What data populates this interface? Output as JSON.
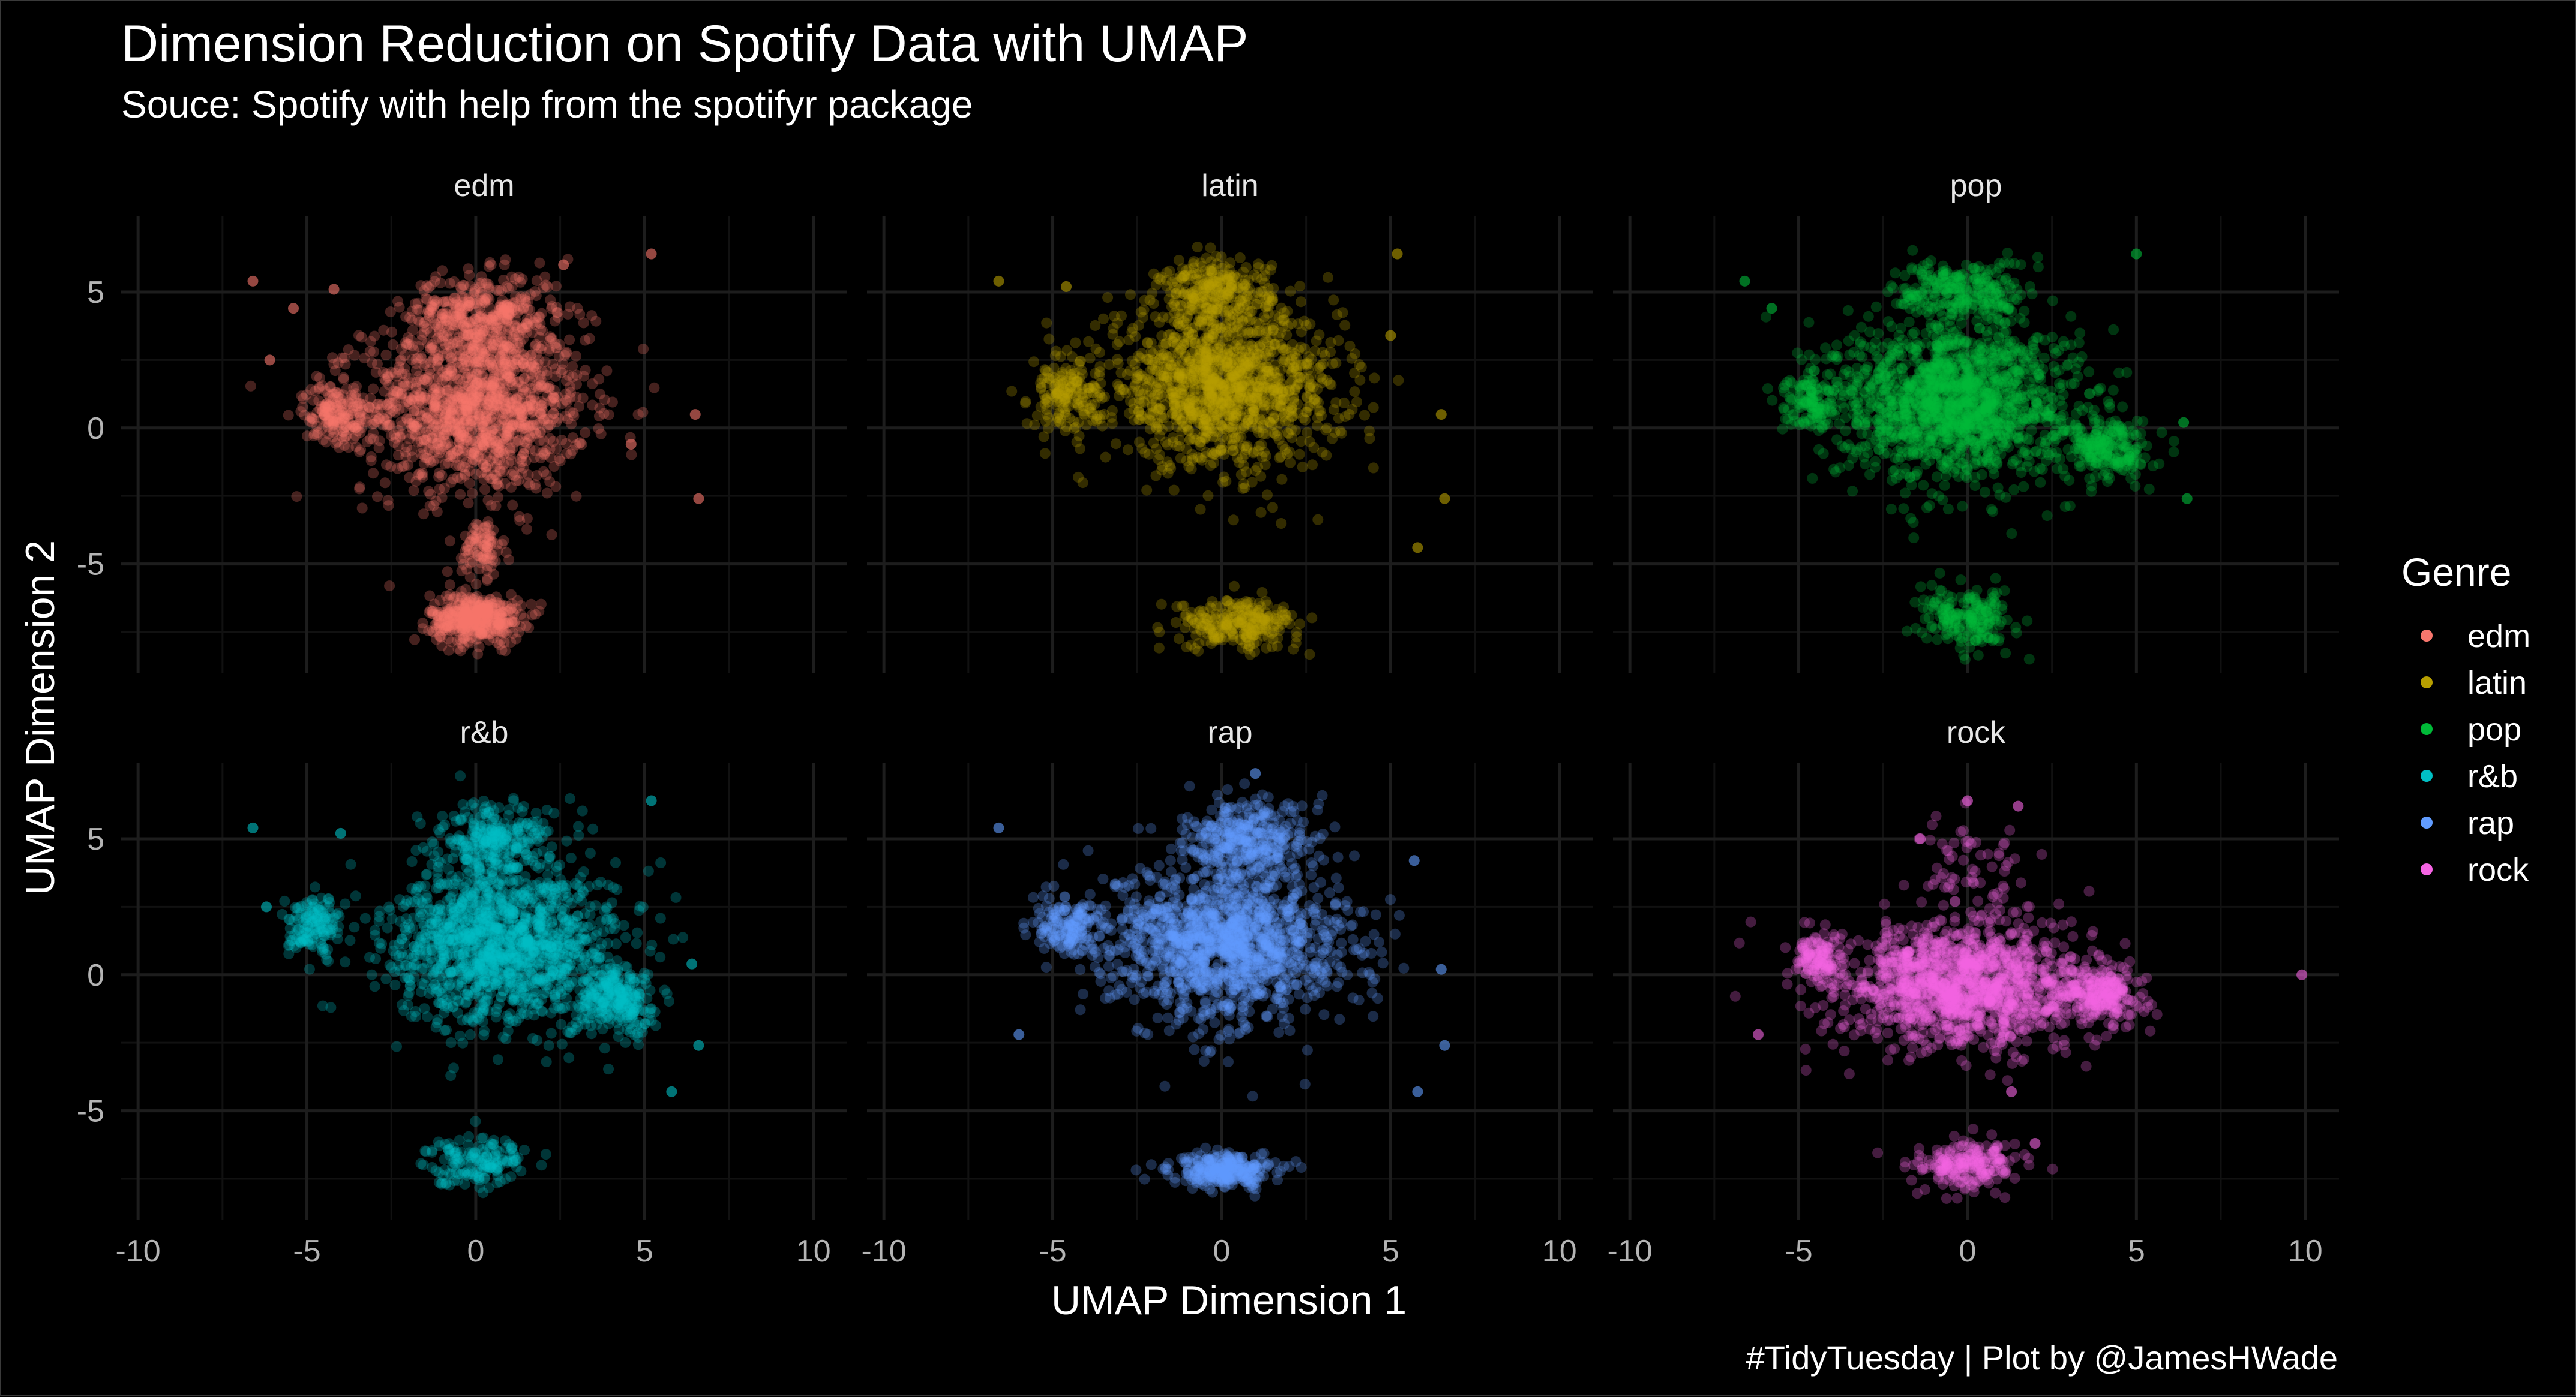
{
  "header": {
    "title": "Dimension Reduction on Spotify Data with UMAP",
    "subtitle": "Souce: Spotify with help from the spotifyr package",
    "caption": "#TidyTuesday | Plot by @JamesHWade"
  },
  "chart_data": {
    "type": "scatter",
    "xlabel": "UMAP Dimension 1",
    "ylabel": "UMAP Dimension 2",
    "xlim": [
      -10.5,
      11
    ],
    "ylim": [
      -9,
      7.8
    ],
    "x_ticks": [
      -10,
      -5,
      0,
      5,
      10
    ],
    "y_ticks": [
      -5,
      0,
      5
    ],
    "grid": true,
    "legend": {
      "title": "Genre",
      "position": "right"
    },
    "series": [
      {
        "name": "edm",
        "color": "#F8766D",
        "clusters": [
          {
            "cx": 0.0,
            "cy": 0.8,
            "sx": 2.2,
            "sy": 2.1,
            "n": 1300
          },
          {
            "cx": 0.2,
            "cy": 4.2,
            "sx": 1.5,
            "sy": 1.0,
            "n": 350
          },
          {
            "cx": -4.2,
            "cy": 0.6,
            "sx": 0.6,
            "sy": 0.7,
            "n": 160
          },
          {
            "cx": 0.0,
            "cy": -7.0,
            "sx": 0.9,
            "sy": 0.6,
            "n": 420
          },
          {
            "cx": 0.2,
            "cy": -4.4,
            "sx": 0.4,
            "sy": 0.7,
            "n": 90
          }
        ],
        "outliers": [
          [
            -6.6,
            5.4
          ],
          [
            -5.4,
            4.4
          ],
          [
            -4.2,
            5.1
          ],
          [
            5.2,
            6.4
          ],
          [
            6.5,
            0.5
          ],
          [
            6.6,
            -2.6
          ],
          [
            4.6,
            -0.6
          ],
          [
            -6.1,
            2.5
          ],
          [
            2.6,
            6.0
          ]
        ]
      },
      {
        "name": "latin",
        "color": "#B79F00",
        "clusters": [
          {
            "cx": 0.0,
            "cy": 1.5,
            "sx": 2.3,
            "sy": 1.9,
            "n": 1300
          },
          {
            "cx": -0.2,
            "cy": 5.0,
            "sx": 1.1,
            "sy": 0.8,
            "n": 260
          },
          {
            "cx": -4.6,
            "cy": 1.2,
            "sx": 0.7,
            "sy": 0.8,
            "n": 150
          },
          {
            "cx": 0.5,
            "cy": -7.2,
            "sx": 1.2,
            "sy": 0.6,
            "n": 260
          }
        ],
        "outliers": [
          [
            -6.6,
            5.4
          ],
          [
            5.2,
            6.4
          ],
          [
            6.5,
            0.5
          ],
          [
            6.6,
            -2.6
          ],
          [
            5.8,
            -4.4
          ],
          [
            -4.6,
            5.2
          ],
          [
            5.0,
            3.4
          ]
        ]
      },
      {
        "name": "pop",
        "color": "#00BA38",
        "clusters": [
          {
            "cx": -0.4,
            "cy": 1.0,
            "sx": 2.3,
            "sy": 1.9,
            "n": 1500
          },
          {
            "cx": -0.2,
            "cy": 5.0,
            "sx": 1.3,
            "sy": 0.8,
            "n": 260
          },
          {
            "cx": 4.2,
            "cy": -0.8,
            "sx": 0.8,
            "sy": 0.8,
            "n": 220
          },
          {
            "cx": -4.6,
            "cy": 1.0,
            "sx": 0.5,
            "sy": 0.7,
            "n": 120
          },
          {
            "cx": 0.0,
            "cy": -7.0,
            "sx": 0.9,
            "sy": 0.7,
            "n": 200
          }
        ],
        "outliers": [
          [
            -6.6,
            5.4
          ],
          [
            5.0,
            6.4
          ],
          [
            6.4,
            0.2
          ],
          [
            6.5,
            -2.6
          ],
          [
            -5.8,
            4.4
          ]
        ]
      },
      {
        "name": "r&b",
        "color": "#00BFC4",
        "clusters": [
          {
            "cx": 0.8,
            "cy": 1.2,
            "sx": 2.2,
            "sy": 2.0,
            "n": 1400
          },
          {
            "cx": 0.5,
            "cy": 5.0,
            "sx": 1.1,
            "sy": 0.8,
            "n": 250
          },
          {
            "cx": 4.2,
            "cy": -1.0,
            "sx": 0.9,
            "sy": 0.8,
            "n": 260
          },
          {
            "cx": -4.8,
            "cy": 1.8,
            "sx": 0.5,
            "sy": 0.7,
            "n": 140
          },
          {
            "cx": 0.0,
            "cy": -6.8,
            "sx": 1.0,
            "sy": 0.6,
            "n": 160
          }
        ],
        "outliers": [
          [
            -6.6,
            5.4
          ],
          [
            -4.0,
            5.2
          ],
          [
            5.2,
            6.4
          ],
          [
            6.4,
            0.4
          ],
          [
            6.6,
            -2.6
          ],
          [
            5.8,
            -4.3
          ],
          [
            -6.2,
            2.5
          ]
        ]
      },
      {
        "name": "rap",
        "color": "#619CFF",
        "clusters": [
          {
            "cx": 0.2,
            "cy": 1.2,
            "sx": 2.3,
            "sy": 1.9,
            "n": 1400
          },
          {
            "cx": 0.8,
            "cy": 5.0,
            "sx": 1.2,
            "sy": 0.9,
            "n": 330
          },
          {
            "cx": -4.6,
            "cy": 1.8,
            "sx": 0.7,
            "sy": 0.7,
            "n": 160
          },
          {
            "cx": 0.1,
            "cy": -7.2,
            "sx": 1.0,
            "sy": 0.4,
            "n": 280
          }
        ],
        "outliers": [
          [
            -6.6,
            5.4
          ],
          [
            1.0,
            7.4
          ],
          [
            5.7,
            4.2
          ],
          [
            6.5,
            0.2
          ],
          [
            6.6,
            -2.6
          ],
          [
            5.8,
            -4.3
          ],
          [
            -6.0,
            -2.2
          ]
        ]
      },
      {
        "name": "rock",
        "color": "#F564E3",
        "clusters": [
          {
            "cx": -0.2,
            "cy": -0.4,
            "sx": 2.4,
            "sy": 1.5,
            "n": 1400
          },
          {
            "cx": 4.0,
            "cy": -0.8,
            "sx": 0.8,
            "sy": 0.7,
            "n": 250
          },
          {
            "cx": -4.4,
            "cy": 0.6,
            "sx": 0.5,
            "sy": 0.6,
            "n": 120
          },
          {
            "cx": 0.0,
            "cy": -7.0,
            "sx": 1.0,
            "sy": 0.6,
            "n": 220
          },
          {
            "cx": 0.2,
            "cy": 3.6,
            "sx": 1.2,
            "sy": 1.6,
            "n": 70
          }
        ],
        "outliers": [
          [
            -6.2,
            -2.2
          ],
          [
            9.9,
            0.0
          ],
          [
            1.3,
            -4.3
          ],
          [
            -1.4,
            5.0
          ],
          [
            0.0,
            6.4
          ],
          [
            1.5,
            6.2
          ],
          [
            2.0,
            -6.2
          ]
        ]
      }
    ]
  }
}
